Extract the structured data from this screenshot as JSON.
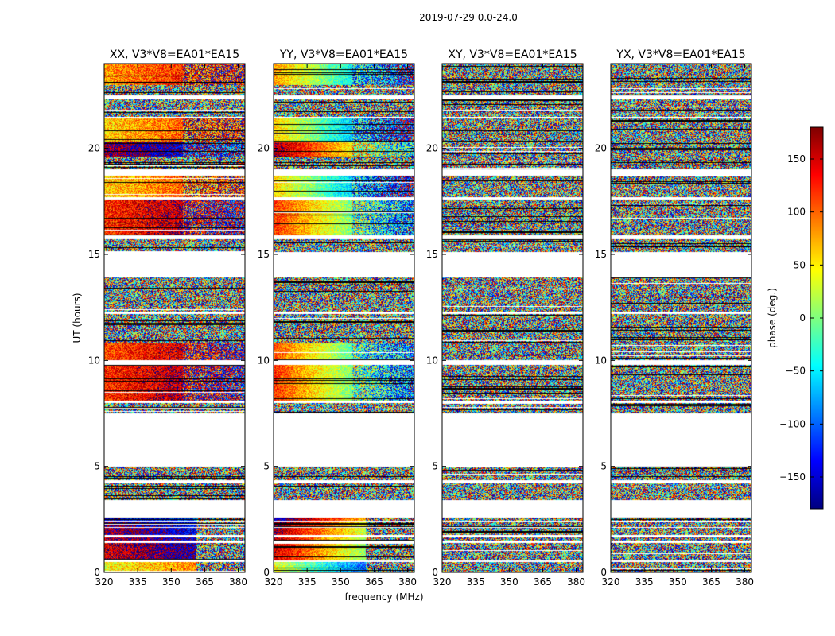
{
  "chart_data": {
    "type": "heatmap",
    "title": "2019-07-29 0.0-24.0",
    "xlabel": "frequency (MHz)",
    "ylabel": "UT (hours)",
    "x_ticks": [
      320,
      335,
      350,
      365,
      380
    ],
    "x_tick_labels": [
      "320",
      "335",
      "350",
      "365",
      "380"
    ],
    "xlim": [
      320,
      383
    ],
    "y_ticks": [
      0,
      5,
      10,
      15,
      20
    ],
    "y_tick_labels": [
      "0",
      "5",
      "10",
      "15",
      "20"
    ],
    "ylim": [
      0,
      24
    ],
    "colorbar": {
      "label": "phase (deg.)",
      "range": [
        -180,
        180
      ],
      "ticks": [
        150,
        100,
        50,
        0,
        -50,
        -100,
        -150
      ],
      "tick_labels": [
        "150",
        "100",
        "50",
        "0",
        "−50",
        "−100",
        "−150"
      ],
      "colormap": [
        "#00007f",
        "#0000ff",
        "#007fff",
        "#00ffff",
        "#7fff7f",
        "#ffff00",
        "#ff7f00",
        "#ff0000",
        "#7f0000"
      ]
    },
    "panels": [
      {
        "name": "XX",
        "title": "XX, V3*V8=EA01*EA15",
        "behavior": "coherent",
        "slope_deg_per_mhz": 1.2
      },
      {
        "name": "YY",
        "title": "YY, V3*V8=EA01*EA15",
        "behavior": "coherent",
        "slope_deg_per_mhz": -3.5
      },
      {
        "name": "XY",
        "title": "XY, V3*V8=EA01*EA15",
        "behavior": "noise",
        "slope_deg_per_mhz": 0
      },
      {
        "name": "YX",
        "title": "YX, V3*V8=EA01*EA15",
        "behavior": "noise",
        "slope_deg_per_mhz": 0
      }
    ],
    "data_blocks_ut_hours": [
      {
        "start": 0.0,
        "end": 0.5,
        "base_phase": 40,
        "coherent": true,
        "low_freq_only": true
      },
      {
        "start": 0.55,
        "end": 1.4,
        "base_phase": 150,
        "coherent": true,
        "low_freq_only": true
      },
      {
        "start": 1.5,
        "end": 1.65,
        "base_phase": 160,
        "coherent": true,
        "low_freq_only": true
      },
      {
        "start": 1.75,
        "end": 2.1,
        "base_phase": 170,
        "coherent": true,
        "low_freq_only": true
      },
      {
        "start": 2.15,
        "end": 2.4,
        "base_phase": 178,
        "coherent": true,
        "low_freq_only": true
      },
      {
        "start": 2.45,
        "end": 2.6,
        "base_phase": -150,
        "coherent": true,
        "low_freq_only": true
      },
      {
        "start": 3.4,
        "end": 4.2,
        "coherent": false
      },
      {
        "start": 4.35,
        "end": 5.0,
        "coherent": false
      },
      {
        "start": 7.5,
        "end": 8.0,
        "coherent": false
      },
      {
        "start": 8.1,
        "end": 9.8,
        "base_phase": 120,
        "coherent": true,
        "low_freq_only": false
      },
      {
        "start": 10.0,
        "end": 10.8,
        "base_phase": 110,
        "coherent": true,
        "low_freq_only": false
      },
      {
        "start": 10.8,
        "end": 12.2,
        "coherent": false
      },
      {
        "start": 12.3,
        "end": 13.9,
        "coherent": false
      },
      {
        "start": 15.1,
        "end": 15.7,
        "coherent": false
      },
      {
        "start": 15.9,
        "end": 17.6,
        "base_phase": 120,
        "coherent": true,
        "low_freq_only": false
      },
      {
        "start": 17.7,
        "end": 18.7,
        "base_phase": 60,
        "coherent": true,
        "low_freq_only": false
      },
      {
        "start": 19.0,
        "end": 19.6,
        "coherent": false
      },
      {
        "start": 19.6,
        "end": 20.3,
        "base_phase": 170,
        "coherent": true,
        "low_freq_only": false
      },
      {
        "start": 20.3,
        "end": 21.4,
        "base_phase": 60,
        "coherent": true,
        "low_freq_only": false
      },
      {
        "start": 21.5,
        "end": 22.3,
        "coherent": false
      },
      {
        "start": 22.5,
        "end": 23.0,
        "coherent": false
      },
      {
        "start": 23.0,
        "end": 24.0,
        "base_phase": 80,
        "coherent": true,
        "low_freq_only": false
      }
    ]
  }
}
